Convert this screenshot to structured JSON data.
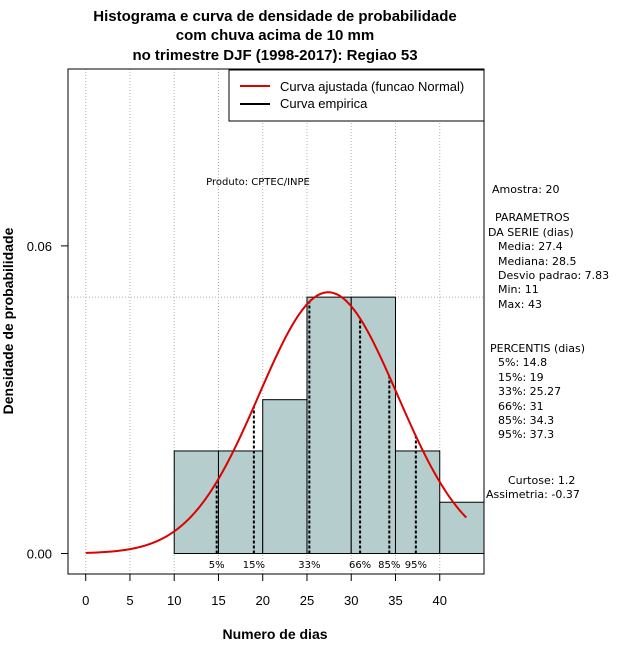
{
  "chart_data": {
    "type": "bar",
    "title_lines": [
      "Histograma e curva de densidade de probabilidade",
      "com chuva acima de 10 mm",
      "no trimestre DJF (1998-2017): Regiao 53"
    ],
    "xlabel": "Numero de dias",
    "ylabel": "Densidade de probabilidade",
    "xlim": [
      -2,
      45
    ],
    "ylim": [
      -0.004,
      0.0945
    ],
    "x_ticks": [
      0,
      5,
      10,
      15,
      20,
      25,
      30,
      35,
      40
    ],
    "y_ticks": [
      0.0,
      0.06
    ],
    "y_tick_labels": [
      "0.00",
      "0.06"
    ],
    "bins": [
      {
        "from": 10,
        "to": 15,
        "density": 0.02
      },
      {
        "from": 15,
        "to": 20,
        "density": 0.02
      },
      {
        "from": 20,
        "to": 25,
        "density": 0.03
      },
      {
        "from": 25,
        "to": 30,
        "density": 0.05
      },
      {
        "from": 30,
        "to": 35,
        "density": 0.05
      },
      {
        "from": 35,
        "to": 40,
        "density": 0.02
      },
      {
        "from": 40,
        "to": 45,
        "density": 0.01
      }
    ],
    "bar_color": "#b5cdcd",
    "reference_line_y": 0.05,
    "normal_curve": {
      "mean": 27.4,
      "sd": 7.83,
      "x_from": 0,
      "x_to": 43,
      "color": "#dd0000"
    },
    "percentiles": [
      {
        "label": "5%",
        "value": 14.8
      },
      {
        "label": "15%",
        "value": 19
      },
      {
        "label": "33%",
        "value": 25.27
      },
      {
        "label": "66%",
        "value": 31
      },
      {
        "label": "85%",
        "value": 34.3
      },
      {
        "label": "95%",
        "value": 37.3
      }
    ],
    "legend": [
      {
        "label": "Curva ajustada (funcao Normal)",
        "color": "#dd0000"
      },
      {
        "label": "Curva empirica",
        "color": "#000000"
      }
    ],
    "product_label": "Produto: CPTEC/INPE"
  },
  "side_panel": {
    "amostra": "Amostra: 20",
    "param_header_1": "PARAMETROS",
    "param_header_2": "DA SERIE (dias)",
    "params": [
      "Media: 27.4",
      "Mediana: 28.5",
      "Desvio padrao: 7.83",
      "Min: 11",
      "Max: 43"
    ],
    "percentis_header": "PERCENTIS (dias)",
    "percentis": [
      "5%: 14.8",
      "15%: 19",
      "33%: 25.27",
      "66%: 31",
      "85%: 34.3",
      "95%: 37.3"
    ],
    "curtose": "Curtose: 1.2",
    "assimetria": "Assimetria: -0.37"
  }
}
